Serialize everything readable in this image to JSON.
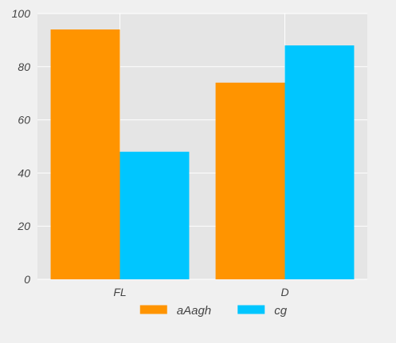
{
  "chart_data": {
    "type": "bar",
    "categories": [
      "FL",
      "D"
    ],
    "series": [
      {
        "name": "aAagh",
        "values": [
          94,
          74
        ],
        "color": "#ff9400"
      },
      {
        "name": "cg",
        "values": [
          48,
          88
        ],
        "color": "#00c6ff"
      }
    ],
    "title": "",
    "xlabel": "",
    "ylabel": "",
    "ylim": [
      0,
      100
    ],
    "yticks": [
      0,
      20,
      40,
      60,
      80,
      100
    ],
    "grid": true,
    "legend": "bottom-center",
    "plot_background": "#e5e5e5",
    "grid_color": "#ffffff"
  }
}
